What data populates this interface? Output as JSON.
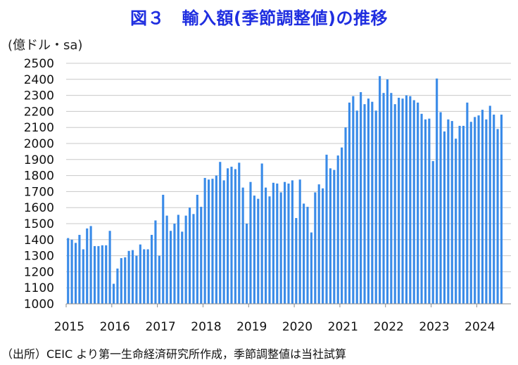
{
  "chart_data": {
    "type": "bar",
    "title": "図３　輸入額(季節調整値)の推移",
    "ylabel": "(億ドル・sa)",
    "xlabel": "",
    "ylim": [
      1000,
      2500
    ],
    "yticks": [
      1000,
      1100,
      1200,
      1300,
      1400,
      1500,
      1600,
      1700,
      1800,
      1900,
      2000,
      2100,
      2200,
      2300,
      2400,
      2500
    ],
    "grid": true,
    "legend": "none",
    "x_tick_labels": [
      "2015",
      "2016",
      "2017",
      "2018",
      "2019",
      "2020",
      "2021",
      "2022",
      "2023",
      "2024"
    ],
    "start_month": "2015-01",
    "end_month": "2024-07",
    "values": [
      1410,
      1400,
      1380,
      1430,
      1340,
      1470,
      1485,
      1360,
      1360,
      1365,
      1365,
      1455,
      1125,
      1220,
      1285,
      1290,
      1330,
      1335,
      1300,
      1370,
      1340,
      1340,
      1430,
      1520,
      1300,
      1680,
      1550,
      1455,
      1500,
      1555,
      1450,
      1550,
      1600,
      1560,
      1680,
      1605,
      1785,
      1775,
      1780,
      1800,
      1885,
      1770,
      1845,
      1855,
      1840,
      1880,
      1725,
      1500,
      1760,
      1675,
      1655,
      1875,
      1725,
      1670,
      1755,
      1750,
      1695,
      1760,
      1750,
      1770,
      1535,
      1775,
      1625,
      1605,
      1445,
      1695,
      1745,
      1720,
      1930,
      1845,
      1835,
      1925,
      1975,
      2100,
      2255,
      2295,
      2205,
      2320,
      2245,
      2280,
      2260,
      2205,
      2420,
      2315,
      2400,
      2315,
      2245,
      2285,
      2280,
      2300,
      2295,
      2270,
      2255,
      2185,
      2150,
      2155,
      1890,
      2405,
      2195,
      2075,
      2150,
      2140,
      2030,
      2110,
      2110,
      2255,
      2135,
      2165,
      2175,
      2210,
      2150,
      2235,
      2180,
      2090,
      2180
    ],
    "bar_color": "#3a8be8",
    "grid_color": "#c8c8c8"
  },
  "source_note": "（出所）CEIC より第一生命経済研究所作成，季節調整値は当社試算"
}
